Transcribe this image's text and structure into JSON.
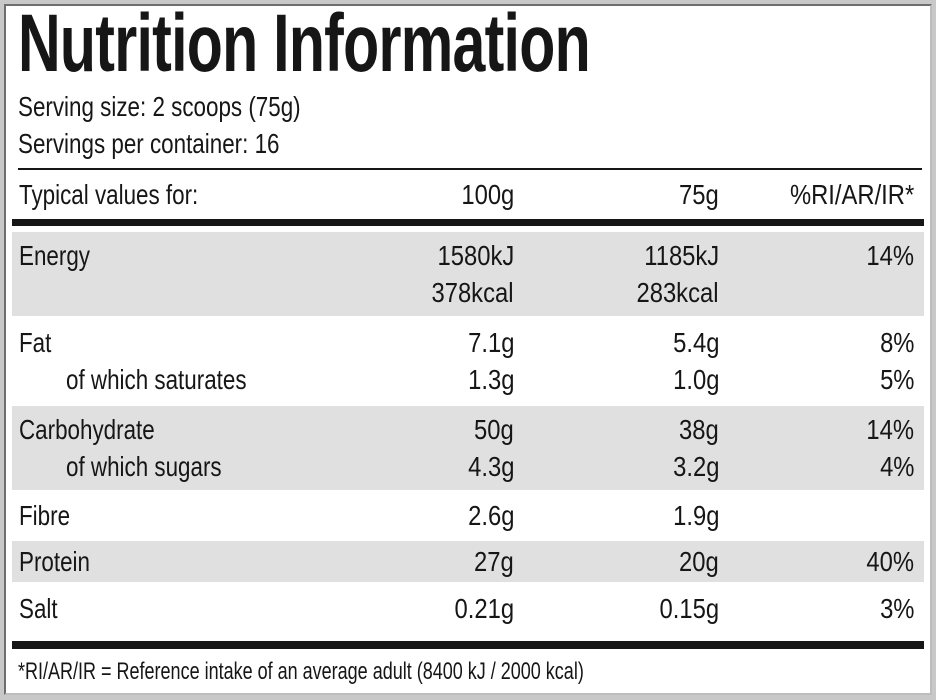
{
  "title": "Nutrition Information",
  "serving": {
    "size": "Serving size: 2 scoops (75g)",
    "per_container": "Servings per container: 16"
  },
  "table": {
    "header": {
      "col1": "Typical values for:",
      "col2": "100g",
      "col3": "75g",
      "col4": "%RI/AR/IR*"
    },
    "rows": [
      {
        "shaded": true,
        "lines": [
          {
            "label": "Energy",
            "per100": "1580kJ",
            "per75": "1185kJ",
            "ri": "14%"
          },
          {
            "label": "",
            "per100": "378kcal",
            "per75": "283kcal",
            "ri": ""
          }
        ]
      },
      {
        "shaded": false,
        "lines": [
          {
            "label": "Fat",
            "per100": "7.1g",
            "per75": "5.4g",
            "ri": "8%"
          },
          {
            "label": "of which saturates",
            "per100": "1.3g",
            "per75": "1.0g",
            "ri": "5%"
          }
        ]
      },
      {
        "shaded": true,
        "lines": [
          {
            "label": "Carbohydrate",
            "per100": "50g",
            "per75": "38g",
            "ri": "14%"
          },
          {
            "label": "of which sugars",
            "per100": "4.3g",
            "per75": "3.2g",
            "ri": "4%"
          }
        ]
      },
      {
        "shaded": false,
        "lines": [
          {
            "label": "Fibre",
            "per100": "2.6g",
            "per75": "1.9g",
            "ri": ""
          }
        ]
      },
      {
        "shaded": true,
        "lines": [
          {
            "label": "Protein",
            "per100": "27g",
            "per75": "20g",
            "ri": "40%"
          }
        ]
      },
      {
        "shaded": false,
        "lines": [
          {
            "label": "Salt",
            "per100": "0.21g",
            "per75": "0.15g",
            "ri": "3%"
          }
        ]
      }
    ]
  },
  "footnote": "*RI/AR/IR = Reference intake of an average adult (8400 kJ / 2000 kcal)",
  "colors": {
    "shaded_row": "#e0e0e0",
    "rule": "#161616",
    "text": "#161616",
    "outer_background": "#c8c8c8",
    "label_background": "#ffffff"
  }
}
